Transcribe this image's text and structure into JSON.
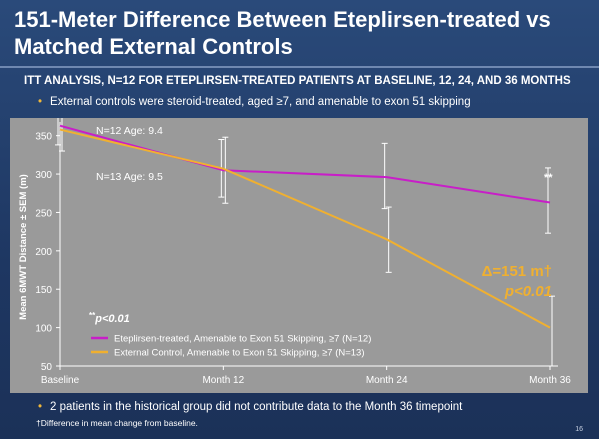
{
  "slide": {
    "title": "151-Meter Difference Between Eteplirsen-treated vs Matched External Controls",
    "subtitle": "ITT ANALYSIS, N=12 FOR ETEPLIRSEN-TREATED PATIENTS AT BASELINE, 12, 24, AND 36 MONTHS",
    "bullet_top": "External controls were steroid-treated, aged ≥7, and amenable to exon 51 skipping",
    "bullet_bottom": "2 patients in the historical group did not contribute data to the Month 36 timepoint",
    "footnote": "†Difference in mean change from baseline.",
    "page_number": "16",
    "bullet_symbol": "•"
  },
  "chart_data": {
    "type": "line",
    "ylabel": "Mean 6MWT Distance ± SEM (m)",
    "ylim": [
      50,
      360
    ],
    "yticks": [
      "50",
      "100",
      "150",
      "200",
      "250",
      "300",
      "350"
    ],
    "categories": [
      "Baseline",
      "Month 12",
      "Month 24",
      "Month 36"
    ],
    "series": [
      {
        "name": "Eteplirsen-treated, Amenable to Exon 51 Skipping, ≥7 (N=12)",
        "color": "#c81ec8",
        "values": [
          363,
          305,
          296,
          263
        ],
        "err_low": [
          338,
          270,
          255,
          223
        ],
        "err_high": [
          383,
          345,
          340,
          308
        ]
      },
      {
        "name": "External Control, Amenable to Exon 51 Skipping, ≥7 (N=13)",
        "color": "#f0b030",
        "values": [
          358,
          307,
          215,
          100
        ],
        "err_low": [
          330,
          262,
          172,
          50
        ],
        "err_high": [
          378,
          348,
          257,
          141
        ]
      }
    ],
    "annotations": {
      "n12": "N=12 Age: 9.4",
      "n13": "N=13 Age: 9.5",
      "significance_marker": "**",
      "delta_label": "Δ=151 m†",
      "delta_p": "p<0.01",
      "legend_note_stars": "**",
      "legend_note_text": "p<0.01"
    },
    "legend_placement": "bottom-left",
    "grid": false
  }
}
